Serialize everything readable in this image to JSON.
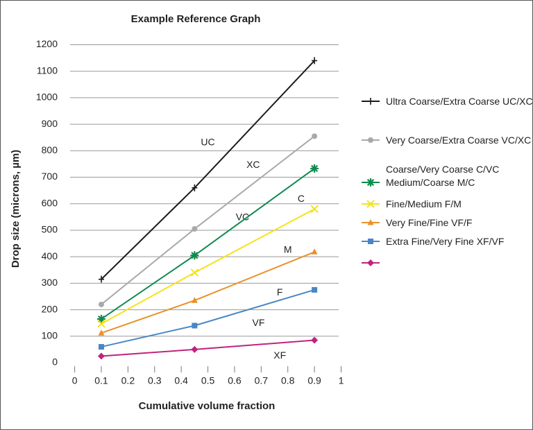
{
  "chart_data": {
    "type": "line",
    "title": "Example Reference Graph",
    "x_label": "Cumulative volume fraction",
    "y_label": "Drop size (microns, µm)",
    "xlim": [
      0,
      1
    ],
    "xticks": [
      0,
      0.1,
      0.2,
      0.3,
      0.4,
      0.5,
      0.6,
      0.7,
      0.8,
      0.9,
      1
    ],
    "ylim": [
      0,
      1200
    ],
    "yticks": [
      0,
      100,
      200,
      300,
      400,
      500,
      600,
      700,
      800,
      900,
      1000,
      1100,
      1200
    ],
    "grid": true,
    "x": [
      0.1,
      0.45,
      0.9
    ],
    "series": [
      {
        "name": "Ultra Coarse/Extra Coarse UC/XC",
        "color": "#1a1a1a",
        "marker": "tick",
        "values": [
          315,
          660,
          1140
        ]
      },
      {
        "name": "Very Coarse/Extra Coarse VC/XC",
        "color": "#a7a9ac",
        "marker": "circle",
        "values": [
          220,
          505,
          855
        ]
      },
      {
        "name": "Medium/Coarse M/C",
        "color": "#0f8a4f",
        "marker": "asterisk",
        "values": [
          165,
          405,
          733
        ]
      },
      {
        "name": "Fine/Medium F/M",
        "color": "#f5e21a",
        "marker": "x",
        "values": [
          147,
          340,
          580
        ]
      },
      {
        "name": "Very Fine/Fine VF/F",
        "color": "#e8912a",
        "marker": "triangle",
        "values": [
          112,
          235,
          418
        ]
      },
      {
        "name": "Extra Fine/Very Fine XF/VF",
        "color": "#4a86c5",
        "marker": "square",
        "values": [
          60,
          140,
          275
        ]
      },
      {
        "color": "#c0237f",
        "marker": "diamond",
        "values": [
          25,
          50,
          85
        ]
      }
    ],
    "legend_extra_text": "Coarse/Very Coarse C/VC",
    "annotations": [
      {
        "text": "UC",
        "x": 0.5,
        "y": 830
      },
      {
        "text": "XC",
        "x": 0.67,
        "y": 745
      },
      {
        "text": "VC",
        "x": 0.63,
        "y": 548
      },
      {
        "text": "C",
        "x": 0.85,
        "y": 617
      },
      {
        "text": "M",
        "x": 0.8,
        "y": 424
      },
      {
        "text": "F",
        "x": 0.77,
        "y": 264
      },
      {
        "text": "VF",
        "x": 0.69,
        "y": 148
      },
      {
        "text": "XF",
        "x": 0.77,
        "y": 26
      }
    ]
  }
}
